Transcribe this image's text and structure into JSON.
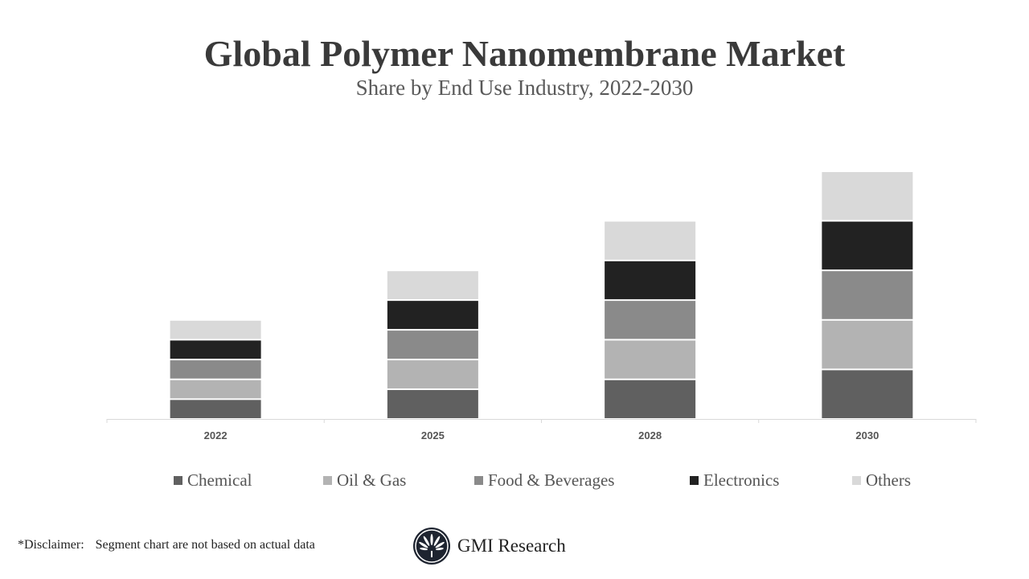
{
  "chart_data": {
    "type": "bar",
    "stacked": true,
    "title": "Global Polymer Nanomembrane Market",
    "subtitle": "Share by End Use Industry, 2022-2030",
    "categories": [
      "2022",
      "2025",
      "2028",
      "2030"
    ],
    "series": [
      {
        "name": "Chemical",
        "color": "#606060",
        "values": [
          1,
          1.5,
          2,
          2.5
        ]
      },
      {
        "name": "Oil & Gas",
        "color": "#b3b3b3",
        "values": [
          1,
          1.5,
          2,
          2.5
        ]
      },
      {
        "name": "Food & Beverages",
        "color": "#8a8a8a",
        "values": [
          1,
          1.5,
          2,
          2.5
        ]
      },
      {
        "name": "Electronics",
        "color": "#222222",
        "values": [
          1,
          1.5,
          2,
          2.5
        ]
      },
      {
        "name": "Others",
        "color": "#d9d9d9",
        "values": [
          1,
          1.5,
          2,
          2.5
        ]
      }
    ],
    "ylim": [
      0,
      14
    ],
    "y_axis_shown": false,
    "grid": false,
    "legend_position": "bottom"
  },
  "footer": {
    "disclaimer_label": "*Disclaimer:",
    "disclaimer_text": "Segment chart are not based on actual data",
    "brand": "GMI Research"
  }
}
